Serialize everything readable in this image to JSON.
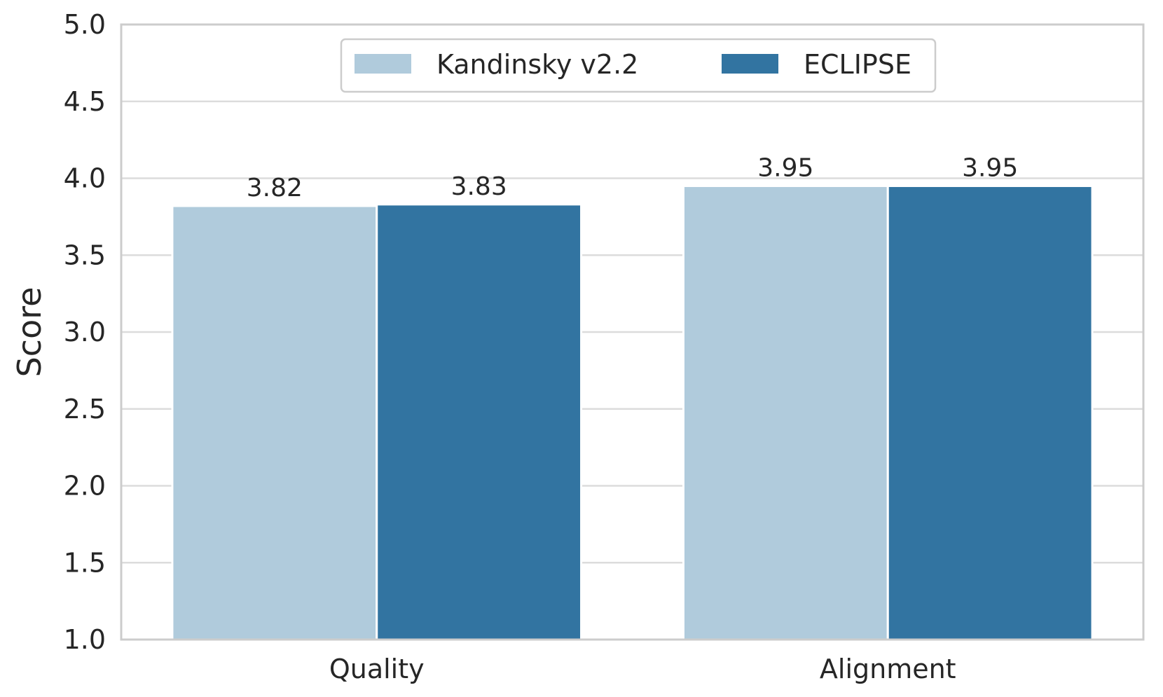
{
  "chart_data": {
    "type": "bar",
    "categories": [
      "Quality",
      "Alignment"
    ],
    "series": [
      {
        "name": "Kandinsky v2.2",
        "values": [
          3.82,
          3.95
        ],
        "labels": [
          "3.82",
          "3.95"
        ],
        "color": "#b0cbdc"
      },
      {
        "name": "ECLIPSE",
        "values": [
          3.83,
          3.95
        ],
        "labels": [
          "3.83",
          "3.95"
        ],
        "color": "#3274a1"
      }
    ],
    "xlabel": "",
    "ylabel": "Score",
    "ylim": [
      1.0,
      5.0
    ],
    "yticks": [
      1.0,
      1.5,
      2.0,
      2.5,
      3.0,
      3.5,
      4.0,
      4.5,
      5.0
    ],
    "ytick_labels": [
      "1.0",
      "1.5",
      "2.0",
      "2.5",
      "3.0",
      "3.5",
      "4.0",
      "4.5",
      "5.0"
    ],
    "grid": true,
    "legend_position": "top-center",
    "colors": {
      "grid": "#dcdcdc",
      "frame": "#cccccc",
      "text": "#262626"
    }
  }
}
